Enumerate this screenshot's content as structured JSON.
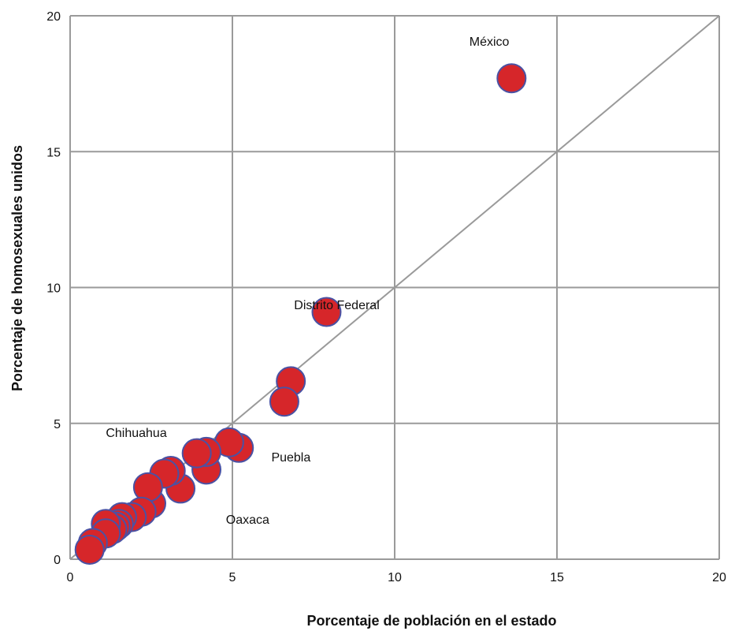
{
  "chart_data": {
    "type": "scatter",
    "title": "",
    "xlabel": "Porcentaje de población en el estado",
    "ylabel": "Porcentaje  de homosexuales unidos",
    "xlim": [
      0,
      20
    ],
    "ylim": [
      0,
      20
    ],
    "xticks": [
      "0",
      "5",
      "10",
      "15",
      "20"
    ],
    "yticks": [
      "0",
      "5",
      "10",
      "15",
      "20"
    ],
    "grid": true,
    "reference_line": {
      "from": [
        0,
        0
      ],
      "to": [
        20,
        20
      ]
    },
    "colors": {
      "point_fill": "#d6262a",
      "point_stroke": "#4a52a4",
      "grid": "#9a9a9a",
      "diagonal": "#9a9a9a"
    },
    "points": [
      {
        "x": 13.6,
        "y": 17.7
      },
      {
        "x": 7.9,
        "y": 9.1
      },
      {
        "x": 6.8,
        "y": 6.55
      },
      {
        "x": 6.6,
        "y": 5.8
      },
      {
        "x": 5.2,
        "y": 4.1
      },
      {
        "x": 4.9,
        "y": 4.3
      },
      {
        "x": 4.2,
        "y": 3.3
      },
      {
        "x": 4.2,
        "y": 3.95
      },
      {
        "x": 3.9,
        "y": 3.9
      },
      {
        "x": 3.4,
        "y": 2.6
      },
      {
        "x": 3.1,
        "y": 3.25
      },
      {
        "x": 2.9,
        "y": 3.15
      },
      {
        "x": 2.5,
        "y": 2.05
      },
      {
        "x": 2.4,
        "y": 2.65
      },
      {
        "x": 2.2,
        "y": 1.75
      },
      {
        "x": 1.9,
        "y": 1.55
      },
      {
        "x": 1.6,
        "y": 1.55
      },
      {
        "x": 1.5,
        "y": 1.3
      },
      {
        "x": 1.4,
        "y": 1.2
      },
      {
        "x": 1.3,
        "y": 1.1
      },
      {
        "x": 1.1,
        "y": 1.3
      },
      {
        "x": 1.1,
        "y": 0.95
      },
      {
        "x": 0.7,
        "y": 0.6
      },
      {
        "x": 0.6,
        "y": 0.35
      }
    ],
    "annotations": [
      {
        "text": "México",
        "x": 12.3,
        "y": 18.9
      },
      {
        "text": "Distrito Federal",
        "x": 6.9,
        "y": 9.2
      },
      {
        "text": "Chihuahua",
        "x": 1.1,
        "y": 4.5
      },
      {
        "text": "Puebla",
        "x": 6.2,
        "y": 3.6
      },
      {
        "text": "Oaxaca",
        "x": 4.8,
        "y": 1.3
      }
    ]
  }
}
